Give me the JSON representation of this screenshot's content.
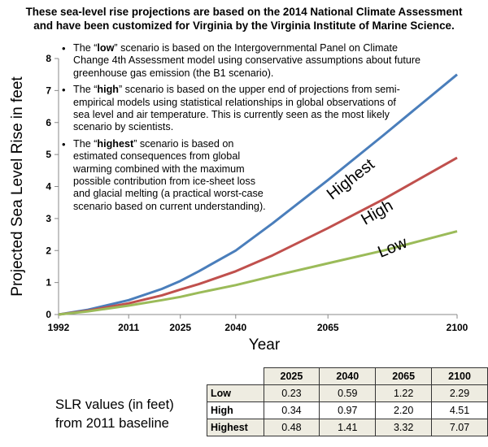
{
  "title_lines": [
    "These sea-level rise projections are based on the 2014 National Climate Assessment",
    "and have been customized for Virginia by the Virginia Institute of Marine Science."
  ],
  "notes": {
    "low": [
      "The “",
      "low",
      "” scenario is based on the Intergovernmental Panel on Climate Change 4th Assessment model using conservative assumptions about future greenhouse gas emission (the B1 scenario)."
    ],
    "high": [
      "The “",
      "high",
      "” scenario is based on the upper end of projections from semi-empirical models using statistical relationships in global observations of sea level and air temperature. This is currently seen as the most likely scenario by scientists."
    ],
    "highest": [
      "The “",
      "highest",
      "” scenario is based on estimated consequences from global warming combined with the maximum possible contribution from ice-sheet loss and glacial melting (a practical worst-case  scenario based on current understanding)."
    ]
  },
  "summary_label": [
    "SLR values (in feet)",
    "from 2011 baseline"
  ],
  "table": {
    "columns": [
      "2025",
      "2040",
      "2065",
      "2100"
    ],
    "rows": [
      {
        "label": "Low",
        "values": [
          "0.23",
          "0.59",
          "1.22",
          "2.29"
        ]
      },
      {
        "label": "High",
        "values": [
          "0.34",
          "0.97",
          "2.20",
          "4.51"
        ]
      },
      {
        "label": "Highest",
        "values": [
          "0.48",
          "1.41",
          "3.32",
          "7.07"
        ]
      }
    ]
  },
  "chart_data": {
    "type": "line",
    "title": "",
    "xlabel": "Year",
    "ylabel": "Projected Sea Level Rise in feet",
    "xlim": [
      1992,
      2100
    ],
    "ylim": [
      0,
      8
    ],
    "x_ticks": [
      1992,
      2011,
      2025,
      2040,
      2065,
      2100
    ],
    "y_ticks": [
      0,
      1,
      2,
      3,
      4,
      5,
      6,
      7,
      8
    ],
    "grid": false,
    "legend": "none",
    "series": [
      {
        "name": "Highest",
        "color": "#4a7ebb",
        "x": [
          1992,
          2000,
          2011,
          2020,
          2025,
          2030,
          2040,
          2050,
          2065,
          2080,
          2090,
          2100
        ],
        "y": [
          0,
          0.15,
          0.45,
          0.8,
          1.05,
          1.35,
          2.0,
          2.85,
          4.2,
          5.6,
          6.55,
          7.5
        ]
      },
      {
        "name": "High",
        "color": "#c0504d",
        "x": [
          1992,
          2000,
          2011,
          2020,
          2025,
          2030,
          2040,
          2050,
          2065,
          2080,
          2090,
          2100
        ],
        "y": [
          0,
          0.12,
          0.35,
          0.6,
          0.78,
          0.95,
          1.35,
          1.85,
          2.7,
          3.6,
          4.25,
          4.9
        ]
      },
      {
        "name": "Low",
        "color": "#9bbb59",
        "x": [
          1992,
          2000,
          2011,
          2020,
          2025,
          2030,
          2040,
          2050,
          2065,
          2080,
          2090,
          2100
        ],
        "y": [
          0,
          0.1,
          0.28,
          0.45,
          0.55,
          0.68,
          0.92,
          1.2,
          1.6,
          2.0,
          2.3,
          2.6
        ]
      }
    ]
  }
}
